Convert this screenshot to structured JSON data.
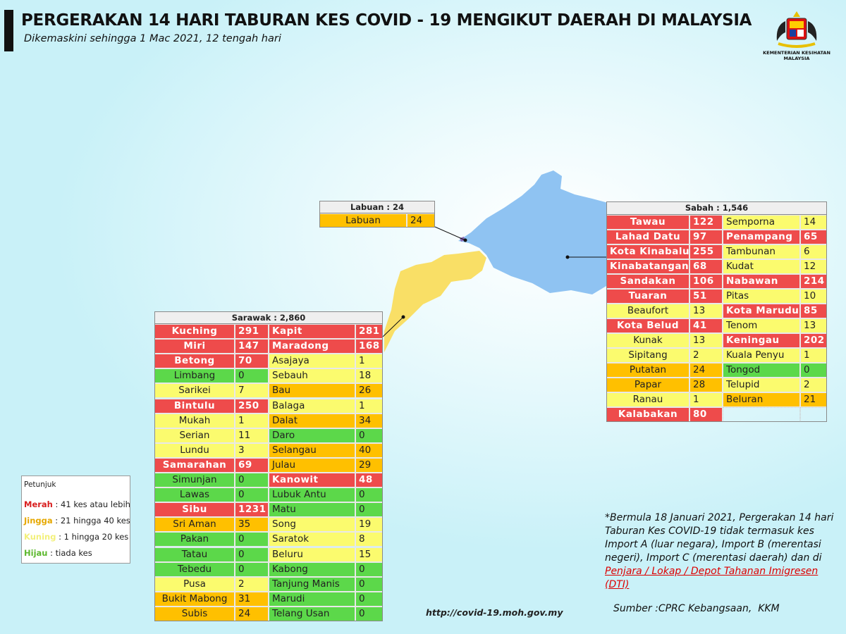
{
  "header": {
    "title": "PERGERAKAN 14 HARI TABURAN KES COVID - 19 MENGIKUT DAERAH DI MALAYSIA",
    "subtitle": "Dikemaskini sehingga 1 Mac 2021, 12 tengah hari",
    "logo_text": [
      "KEMENTERIAN KESIHATAN",
      "MALAYSIA"
    ]
  },
  "labuan": {
    "title": "Labuan : 24",
    "rows": [
      [
        {
          "name": "Labuan",
          "cases": 24,
          "color": "#ffc000"
        }
      ]
    ]
  },
  "sabah": {
    "title": "Sabah : 1,546",
    "rows": [
      [
        {
          "name": "Tawau",
          "cases": 122,
          "color": "#ee4b4b"
        },
        {
          "name": "Semporna",
          "cases": 14,
          "color": "#fbfb6e"
        }
      ],
      [
        {
          "name": "Lahad Datu",
          "cases": 97,
          "color": "#ee4b4b"
        },
        {
          "name": "Penampang",
          "cases": 65,
          "color": "#ee4b4b"
        }
      ],
      [
        {
          "name": "Kota Kinabalu",
          "cases": 255,
          "color": "#ee4b4b"
        },
        {
          "name": "Tambunan",
          "cases": 6,
          "color": "#fbfb6e"
        }
      ],
      [
        {
          "name": "Kinabatangan",
          "cases": 68,
          "color": "#ee4b4b"
        },
        {
          "name": "Kudat",
          "cases": 12,
          "color": "#fbfb6e"
        }
      ],
      [
        {
          "name": "Sandakan",
          "cases": 106,
          "color": "#ee4b4b"
        },
        {
          "name": "Nabawan",
          "cases": 214,
          "color": "#ee4b4b"
        }
      ],
      [
        {
          "name": "Tuaran",
          "cases": 51,
          "color": "#ee4b4b"
        },
        {
          "name": "Pitas",
          "cases": 10,
          "color": "#fbfb6e"
        }
      ],
      [
        {
          "name": "Beaufort",
          "cases": 13,
          "color": "#fbfb6e"
        },
        {
          "name": "Kota Marudu",
          "cases": 85,
          "color": "#ee4b4b"
        }
      ],
      [
        {
          "name": "Kota Belud",
          "cases": 41,
          "color": "#ee4b4b"
        },
        {
          "name": "Tenom",
          "cases": 13,
          "color": "#fbfb6e"
        }
      ],
      [
        {
          "name": "Kunak",
          "cases": 13,
          "color": "#fbfb6e"
        },
        {
          "name": "Keningau",
          "cases": 202,
          "color": "#ee4b4b"
        }
      ],
      [
        {
          "name": "Sipitang",
          "cases": 2,
          "color": "#fbfb6e"
        },
        {
          "name": "Kuala Penyu",
          "cases": 1,
          "color": "#fbfb6e"
        }
      ],
      [
        {
          "name": "Putatan",
          "cases": 24,
          "color": "#ffc000"
        },
        {
          "name": "Tongod",
          "cases": 0,
          "color": "#5cd84a"
        }
      ],
      [
        {
          "name": "Papar",
          "cases": 28,
          "color": "#ffc000"
        },
        {
          "name": "Telupid",
          "cases": 2,
          "color": "#fbfb6e"
        }
      ],
      [
        {
          "name": "Ranau",
          "cases": 1,
          "color": "#fbfb6e"
        },
        {
          "name": "Beluran",
          "cases": 21,
          "color": "#ffc000"
        }
      ],
      [
        {
          "name": "Kalabakan",
          "cases": 80,
          "color": "#ee4b4b"
        }
      ]
    ]
  },
  "sarawak": {
    "title": "Sarawak : 2,860",
    "rows": [
      [
        {
          "name": "Kuching",
          "cases": 291,
          "color": "#ee4b4b"
        },
        {
          "name": "Kapit",
          "cases": 281,
          "color": "#ee4b4b"
        }
      ],
      [
        {
          "name": "Miri",
          "cases": 147,
          "color": "#ee4b4b"
        },
        {
          "name": "Maradong",
          "cases": 168,
          "color": "#ee4b4b"
        }
      ],
      [
        {
          "name": "Betong",
          "cases": 70,
          "color": "#ee4b4b"
        },
        {
          "name": "Asajaya",
          "cases": 1,
          "color": "#fbfb6e"
        }
      ],
      [
        {
          "name": "Limbang",
          "cases": 0,
          "color": "#5cd84a"
        },
        {
          "name": "Sebauh",
          "cases": 18,
          "color": "#fbfb6e"
        }
      ],
      [
        {
          "name": "Sarikei",
          "cases": 7,
          "color": "#fbfb6e"
        },
        {
          "name": "Bau",
          "cases": 26,
          "color": "#ffc000"
        }
      ],
      [
        {
          "name": "Bintulu",
          "cases": 250,
          "color": "#ee4b4b"
        },
        {
          "name": "Balaga",
          "cases": 1,
          "color": "#fbfb6e"
        }
      ],
      [
        {
          "name": "Mukah",
          "cases": 1,
          "color": "#fbfb6e"
        },
        {
          "name": "Dalat",
          "cases": 34,
          "color": "#ffc000"
        }
      ],
      [
        {
          "name": "Serian",
          "cases": 11,
          "color": "#fbfb6e"
        },
        {
          "name": "Daro",
          "cases": 0,
          "color": "#5cd84a"
        }
      ],
      [
        {
          "name": "Lundu",
          "cases": 3,
          "color": "#fbfb6e"
        },
        {
          "name": "Selangau",
          "cases": 40,
          "color": "#ffc000"
        }
      ],
      [
        {
          "name": "Samarahan",
          "cases": 69,
          "color": "#ee4b4b"
        },
        {
          "name": "Julau",
          "cases": 29,
          "color": "#ffc000"
        }
      ],
      [
        {
          "name": "Simunjan",
          "cases": 0,
          "color": "#5cd84a"
        },
        {
          "name": "Kanowit",
          "cases": 48,
          "color": "#ee4b4b"
        }
      ],
      [
        {
          "name": "Lawas",
          "cases": 0,
          "color": "#5cd84a"
        },
        {
          "name": "Lubuk Antu",
          "cases": 0,
          "color": "#5cd84a"
        }
      ],
      [
        {
          "name": "Sibu",
          "cases": 1231,
          "color": "#ee4b4b"
        },
        {
          "name": "Matu",
          "cases": 0,
          "color": "#5cd84a"
        }
      ],
      [
        {
          "name": "Sri Aman",
          "cases": 35,
          "color": "#ffc000"
        },
        {
          "name": "Song",
          "cases": 19,
          "color": "#fbfb6e"
        }
      ],
      [
        {
          "name": "Pakan",
          "cases": 0,
          "color": "#5cd84a"
        },
        {
          "name": "Saratok",
          "cases": 8,
          "color": "#fbfb6e"
        }
      ],
      [
        {
          "name": "Tatau",
          "cases": 0,
          "color": "#5cd84a"
        },
        {
          "name": "Beluru",
          "cases": 15,
          "color": "#fbfb6e"
        }
      ],
      [
        {
          "name": "Tebedu",
          "cases": 0,
          "color": "#5cd84a"
        },
        {
          "name": "Kabong",
          "cases": 0,
          "color": "#5cd84a"
        }
      ],
      [
        {
          "name": "Pusa",
          "cases": 2,
          "color": "#fbfb6e"
        },
        {
          "name": "Tanjung Manis",
          "cases": 0,
          "color": "#5cd84a"
        }
      ],
      [
        {
          "name": "Bukit Mabong",
          "cases": 31,
          "color": "#ffc000"
        },
        {
          "name": "Marudi",
          "cases": 0,
          "color": "#5cd84a"
        }
      ],
      [
        {
          "name": "Subis",
          "cases": 24,
          "color": "#ffc000"
        },
        {
          "name": "Telang Usan",
          "cases": 0,
          "color": "#5cd84a"
        }
      ]
    ]
  },
  "legend": {
    "title": "Petunjuk",
    "items": [
      {
        "label": "Merah",
        "text": ": 41 kes atau lebih",
        "color": "#d81e1e"
      },
      {
        "label": "Jingga",
        "text": ": 21 hingga 40 kes",
        "color": "#e6a800"
      },
      {
        "label": "Kuning",
        "text": ": 1 hingga 20 kes",
        "color": "#f2f07a"
      },
      {
        "label": "Hijau",
        "text": ": tiada kes",
        "color": "#5cb82e"
      }
    ]
  },
  "footnote": {
    "text": "*Bermula 18 Januari 2021, Pergerakan 14 hari Taburan Kes COVID-19 tidak termasuk kes Import A (luar negara), Import B (merentasi negeri), Import C (merentasi daerah) dan di ",
    "link": "Penjara / Lokap / Depot Tahanan Imigresen (DTI)"
  },
  "url": "http://covid-19.moh.gov.my",
  "source": "Sumber :CPRC Kebangsaan,  KKM"
}
